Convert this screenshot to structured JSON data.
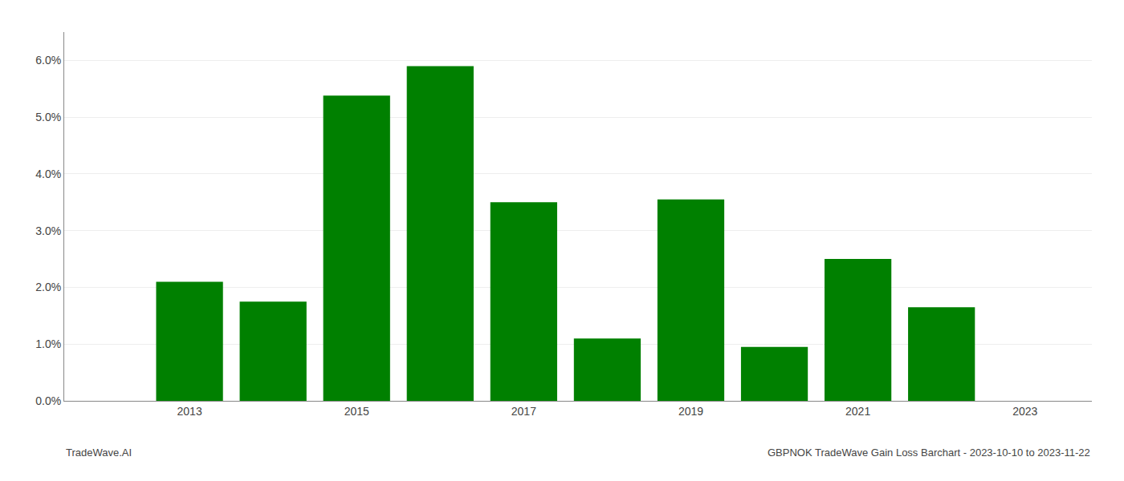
{
  "chart_data": {
    "type": "bar",
    "title": "GBPNOK TradeWave Gain Loss Barchart - 2023-10-10 to 2023-11-22",
    "annotations": [
      "TradeWave.AI"
    ],
    "x": [
      2013,
      2014,
      2015,
      2016,
      2017,
      2018,
      2019,
      2020,
      2021,
      2022
    ],
    "values": [
      0.021,
      0.0175,
      0.0538,
      0.059,
      0.035,
      0.011,
      0.0355,
      0.0095,
      0.025,
      0.0165
    ],
    "color": "#008000",
    "xlim": [
      2011.5,
      2023.8
    ],
    "xticks": [
      2013,
      2015,
      2017,
      2019,
      2021,
      2023
    ],
    "ylim": [
      0,
      0.065
    ],
    "yticks": [
      {
        "value": 0.0,
        "label": "0.0%"
      },
      {
        "value": 0.01,
        "label": "1.0%"
      },
      {
        "value": 0.02,
        "label": "2.0%"
      },
      {
        "value": 0.03,
        "label": "3.0%"
      },
      {
        "value": 0.04,
        "label": "4.0%"
      },
      {
        "value": 0.05,
        "label": "5.0%"
      },
      {
        "value": 0.06,
        "label": "6.0%"
      }
    ],
    "grid": true
  }
}
